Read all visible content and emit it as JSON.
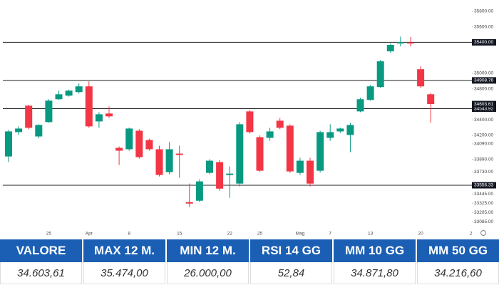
{
  "chart_data": {
    "type": "candlestick",
    "categories": [
      null,
      null,
      null,
      null,
      "25",
      null,
      null,
      null,
      "Apr",
      null,
      null,
      null,
      "8",
      null,
      null,
      null,
      null,
      "15",
      null,
      null,
      null,
      null,
      "22",
      null,
      null,
      "25",
      null,
      null,
      null,
      "Mag",
      null,
      null,
      "7",
      null,
      null,
      null,
      "13",
      null,
      null,
      null,
      null,
      "20",
      null,
      null,
      null,
      null,
      "2"
    ],
    "open": [
      33928,
      34242,
      34583,
      34186,
      34371,
      34666,
      34712,
      34758,
      34832,
      34380,
      34482,
      34039,
      34021,
      34260,
      34140,
      34021,
      33726,
      33965,
      33339,
      33357,
      33716,
      33855,
      33689,
      33578,
      34509,
      34177,
      34168,
      34389,
      34325,
      33716,
      33873,
      33744,
      34168,
      34251,
      34205,
      34509,
      34657,
      34823,
      35284,
      35385,
      35400,
      35053,
      34730,
      null,
      null,
      null,
      null
    ],
    "high": [
      34270,
      34316,
      34592,
      34343,
      34666,
      34777,
      34790,
      34869,
      34896,
      34500,
      34574,
      34057,
      34300,
      34280,
      34158,
      34067,
      34113,
      34067,
      33578,
      33634,
      33892,
      33882,
      33799,
      34371,
      34528,
      34200,
      34297,
      34426,
      34343,
      33910,
      33910,
      34260,
      34343,
      34300,
      34362,
      34684,
      34850,
      35173,
      35385,
      35474,
      35468,
      35090,
      34750,
      null,
      null,
      null,
      null
    ],
    "low": [
      33855,
      34205,
      34279,
      34160,
      34362,
      34657,
      34700,
      34740,
      34297,
      34297,
      34426,
      33818,
      34002,
      33900,
      34002,
      33670,
      33698,
      33652,
      33274,
      33339,
      33698,
      33486,
      33394,
      33541,
      34223,
      33730,
      34131,
      34279,
      33716,
      33689,
      33541,
      33720,
      34131,
      34230,
      33984,
      34500,
      34648,
      34814,
      35265,
      35348,
      35348,
      34814,
      34362,
      null,
      null,
      null,
      null
    ],
    "close": [
      34251,
      34288,
      34297,
      34334,
      34648,
      34730,
      34777,
      34832,
      34316,
      34472,
      34445,
      34002,
      34288,
      33919,
      34021,
      33689,
      34021,
      33947,
      33320,
      33606,
      33873,
      33513,
      33707,
      34343,
      34242,
      33744,
      34251,
      34297,
      33735,
      33873,
      33578,
      34242,
      34242,
      34288,
      34334,
      34666,
      34832,
      35155,
      35367,
      35404,
      35385,
      34832,
      34603.61,
      null,
      null,
      null,
      null
    ],
    "up_color": "#089981",
    "down_color": "#f23645",
    "ylim": [
      32950,
      35900
    ],
    "yticks": [
      {
        "value": 35800,
        "label": "35800.00"
      },
      {
        "value": 35600,
        "label": "35600.00"
      },
      {
        "value": 35000,
        "label": "35000.00"
      },
      {
        "value": 34800,
        "label": "34800.00"
      },
      {
        "value": 34400,
        "label": "34400.00"
      },
      {
        "value": 34200,
        "label": "34200.00"
      },
      {
        "value": 34090,
        "label": "34090.00"
      },
      {
        "value": 33890,
        "label": "33890.00"
      },
      {
        "value": 33730,
        "label": "33730.00"
      },
      {
        "value": 33445,
        "label": "33445.00"
      },
      {
        "value": 33325,
        "label": "33325.00"
      },
      {
        "value": 33205,
        "label": "33205.00"
      },
      {
        "value": 33085,
        "label": "33085.00"
      }
    ],
    "price_lines": [
      {
        "value": 35400,
        "label": "35400.00"
      },
      {
        "value": 34908.76,
        "label": "34908.76"
      },
      {
        "value": 34543.92,
        "label": "34543.92"
      },
      {
        "value": 33556.33,
        "label": "33556.33"
      }
    ],
    "last_price": {
      "value": 34603.61,
      "label": "34603.61"
    }
  },
  "table": {
    "headers": [
      "VALORE",
      "MAX 12 M.",
      "MIN 12 M.",
      "RSI 14 GG",
      "MM 10 GG",
      "MM 50 GG"
    ],
    "rows": [
      [
        "34.603,61",
        "35.474,00",
        "26.000,00",
        "52,84",
        "34.871,80",
        "34.216,60"
      ]
    ]
  }
}
